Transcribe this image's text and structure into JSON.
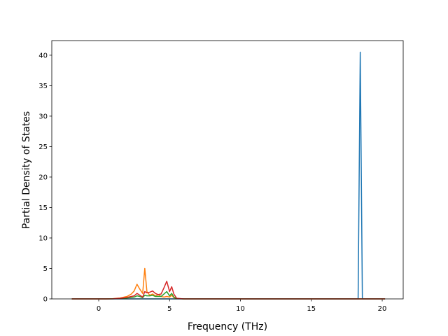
{
  "chart_data": {
    "type": "line",
    "x_label": "Frequency (THz)",
    "y_label": "Partial Density of States",
    "x": [
      -1.9,
      -1,
      0,
      0.5,
      1,
      1.5,
      2,
      2.3,
      2.5,
      2.7,
      2.9,
      3.1,
      3.25,
      3.4,
      3.6,
      3.8,
      4.0,
      4.2,
      4.4,
      4.6,
      4.8,
      5.0,
      5.15,
      5.3,
      5.5,
      6,
      8,
      10,
      15,
      18,
      18.3,
      18.45,
      18.6,
      19,
      20.2
    ],
    "series": [
      {
        "color": "#1f77b4",
        "values": [
          0,
          0,
          0,
          0,
          0,
          0,
          0,
          0,
          0,
          0,
          0,
          0,
          0,
          0,
          0,
          0,
          0,
          0,
          0,
          0,
          0,
          0,
          0,
          0,
          0,
          0,
          0,
          0,
          0,
          0,
          0,
          40.5,
          0,
          0,
          0
        ]
      },
      {
        "color": "#ff7f0e",
        "values": [
          0,
          0,
          0,
          0,
          0.05,
          0.15,
          0.4,
          0.8,
          1.3,
          2.4,
          1.6,
          0.9,
          5.0,
          1.2,
          0.6,
          0.8,
          0.5,
          0.7,
          0.4,
          0.3,
          0.4,
          0.3,
          0.6,
          0.2,
          0.05,
          0,
          0,
          0,
          0,
          0,
          0,
          0,
          0,
          0,
          0
        ]
      },
      {
        "color": "#2ca02c",
        "values": [
          0,
          0,
          0,
          0,
          0.02,
          0.05,
          0.15,
          0.25,
          0.3,
          0.5,
          0.4,
          0.2,
          0.6,
          0.5,
          0.5,
          0.6,
          0.4,
          0.4,
          0.4,
          0.8,
          1.2,
          0.5,
          0.9,
          0.3,
          0.05,
          0,
          0,
          0,
          0,
          0,
          0,
          0,
          0,
          0,
          0
        ]
      },
      {
        "color": "#d62728",
        "values": [
          0,
          0,
          0,
          0,
          0.02,
          0.1,
          0.25,
          0.4,
          0.5,
          0.9,
          0.6,
          0.3,
          1.2,
          1.0,
          1.1,
          1.3,
          0.9,
          0.7,
          0.8,
          1.8,
          2.9,
          1.2,
          2.0,
          0.8,
          0.1,
          0,
          0,
          0,
          0,
          0,
          0,
          0,
          0,
          0,
          0
        ]
      }
    ],
    "xlim": [
      -3.31,
      21.48
    ],
    "ylim": [
      0,
      42.4
    ],
    "xticks": [
      0,
      5,
      10,
      15,
      20
    ],
    "yticks": [
      0,
      5,
      10,
      15,
      20,
      25,
      30,
      35,
      40
    ]
  }
}
